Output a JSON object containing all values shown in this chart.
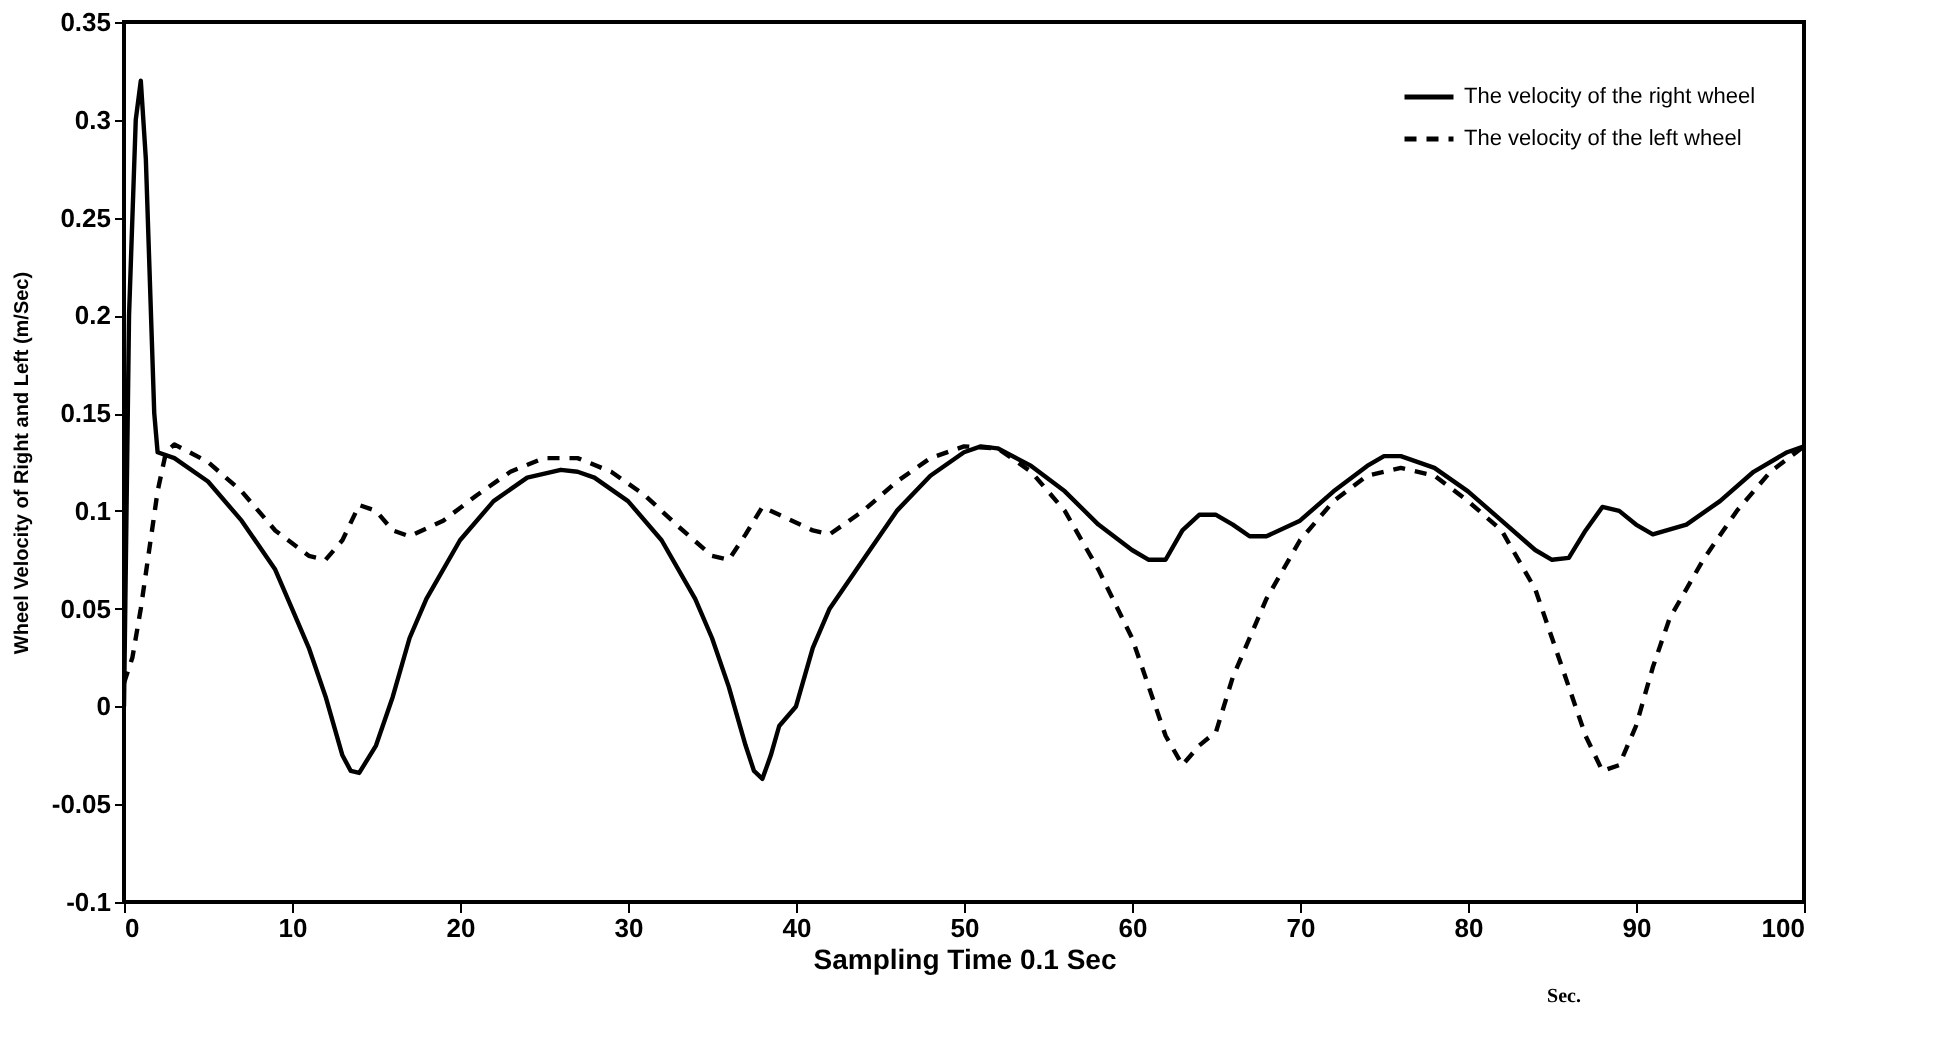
{
  "chart_data": {
    "type": "line",
    "xlabel": "Sampling Time 0.1 Sec",
    "ylabel": "Wheel Velocity of Right and Left (m/Sec)",
    "xlim": [
      0,
      100
    ],
    "xticks": [
      0,
      10,
      20,
      30,
      40,
      50,
      60,
      70,
      80,
      90,
      100
    ],
    "ylim": [
      -0.1,
      0.35
    ],
    "yticks": [
      -0.1,
      -0.05,
      0,
      0.05,
      0.1,
      0.15,
      0.2,
      0.25,
      0.3,
      0.35
    ],
    "grid": false,
    "legend": "top right",
    "annotations": [
      "Sec."
    ],
    "series": [
      {
        "name": "The velocity of the right wheel",
        "color": "#000000",
        "line_style": "solid",
        "x": [
          0,
          0.3,
          0.7,
          1,
          1.3,
          1.8,
          2,
          3,
          5,
          7,
          9,
          10,
          11,
          12,
          13,
          13.5,
          14,
          15,
          16,
          17,
          18,
          20,
          22,
          24,
          26,
          27,
          28,
          30,
          32,
          34,
          35,
          36,
          37,
          37.5,
          38,
          38.5,
          39,
          40,
          41,
          42,
          44,
          46,
          48,
          50,
          51,
          52,
          54,
          56,
          58,
          60,
          61,
          62,
          63,
          64,
          65,
          66,
          67,
          68,
          70,
          72,
          74,
          75,
          76,
          78,
          80,
          82,
          84,
          85,
          86,
          87,
          88,
          89,
          90,
          91,
          93,
          95,
          97,
          99,
          100
        ],
        "values": [
          0.0,
          0.2,
          0.3,
          0.32,
          0.28,
          0.15,
          0.13,
          0.127,
          0.115,
          0.095,
          0.07,
          0.05,
          0.03,
          0.005,
          -0.025,
          -0.033,
          -0.034,
          -0.02,
          0.005,
          0.035,
          0.055,
          0.085,
          0.105,
          0.117,
          0.121,
          0.12,
          0.117,
          0.105,
          0.085,
          0.055,
          0.035,
          0.01,
          -0.02,
          -0.033,
          -0.037,
          -0.025,
          -0.01,
          0.0,
          0.03,
          0.05,
          0.075,
          0.1,
          0.118,
          0.13,
          0.133,
          0.132,
          0.123,
          0.11,
          0.093,
          0.08,
          0.075,
          0.075,
          0.09,
          0.098,
          0.098,
          0.093,
          0.087,
          0.087,
          0.095,
          0.11,
          0.123,
          0.128,
          0.128,
          0.122,
          0.11,
          0.095,
          0.08,
          0.075,
          0.076,
          0.09,
          0.102,
          0.1,
          0.093,
          0.088,
          0.093,
          0.105,
          0.12,
          0.13,
          0.133
        ]
      },
      {
        "name": "The velocity of the left wheel",
        "color": "#000000",
        "line_style": "dashed",
        "x": [
          0,
          0.5,
          1,
          1.5,
          2,
          2.5,
          3,
          5,
          7,
          9,
          11,
          12,
          13,
          14,
          15,
          16,
          17,
          19,
          21,
          23,
          25,
          27,
          29,
          31,
          33,
          35,
          36,
          37,
          38,
          39,
          41,
          42,
          44,
          46,
          48,
          50,
          52,
          54,
          56,
          58,
          60,
          61,
          62,
          63,
          64,
          65,
          66,
          67,
          68,
          70,
          72,
          74,
          76,
          78,
          80,
          82,
          84,
          85,
          86,
          87,
          88,
          89,
          90,
          91,
          92,
          94,
          96,
          98,
          100
        ],
        "values": [
          0.012,
          0.025,
          0.05,
          0.08,
          0.11,
          0.13,
          0.134,
          0.125,
          0.11,
          0.09,
          0.077,
          0.075,
          0.085,
          0.103,
          0.1,
          0.09,
          0.087,
          0.095,
          0.108,
          0.12,
          0.127,
          0.127,
          0.12,
          0.108,
          0.092,
          0.077,
          0.075,
          0.088,
          0.102,
          0.098,
          0.09,
          0.088,
          0.1,
          0.115,
          0.127,
          0.133,
          0.132,
          0.12,
          0.1,
          0.07,
          0.035,
          0.01,
          -0.015,
          -0.03,
          -0.02,
          -0.013,
          0.015,
          0.035,
          0.055,
          0.085,
          0.105,
          0.118,
          0.122,
          0.118,
          0.105,
          0.09,
          0.06,
          0.035,
          0.01,
          -0.015,
          -0.033,
          -0.03,
          -0.01,
          0.02,
          0.045,
          0.075,
          0.1,
          0.12,
          0.133
        ]
      }
    ]
  }
}
